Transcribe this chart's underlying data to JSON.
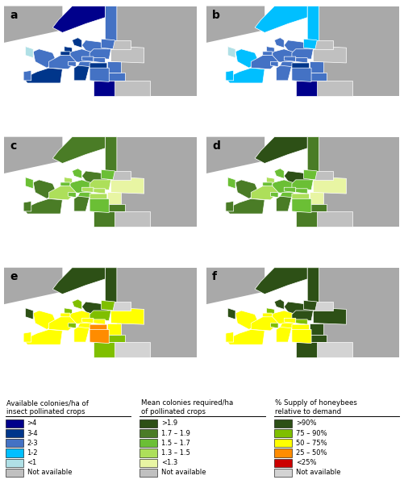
{
  "figure_width": 5.02,
  "figure_height": 6.0,
  "dpi": 100,
  "background_color": "#ffffff",
  "panel_labels": [
    "a",
    "b",
    "c",
    "d",
    "e",
    "f"
  ],
  "legend1_title": "Available colonies/ha of\ninsect pollinated crops",
  "legend1_items": [
    ">4",
    "3-4",
    "2-3",
    "1-2",
    "<1",
    "Not available"
  ],
  "legend1_colors": [
    "#00008B",
    "#00368B",
    "#4472C4",
    "#00BFFF",
    "#B0E0E6",
    "#C0C0C0"
  ],
  "legend2_title": "Mean colonies required/ha\nof pollinated crops",
  "legend2_items": [
    ">1.9",
    "1.7 – 1.9",
    "1.5 – 1.7",
    "1.3 – 1.5",
    "<1.3",
    "Not available"
  ],
  "legend2_colors": [
    "#2D5016",
    "#4A7C26",
    "#6BBF35",
    "#ADDF5A",
    "#E8F5A3",
    "#C0C0C0"
  ],
  "legend3_title": "% Supply of honeybees\nrelative to demand",
  "legend3_items": [
    ">90%",
    "75 – 90%",
    "50 – 75%",
    "25 – 50%",
    "<25%",
    "Not available"
  ],
  "legend3_colors": [
    "#2D5016",
    "#7FBF00",
    "#FFFF00",
    "#FF8C00",
    "#CC0000",
    "#D3D3D3"
  ],
  "map_bg_color": "#A9A9A9",
  "map_border_color": "#ffffff"
}
